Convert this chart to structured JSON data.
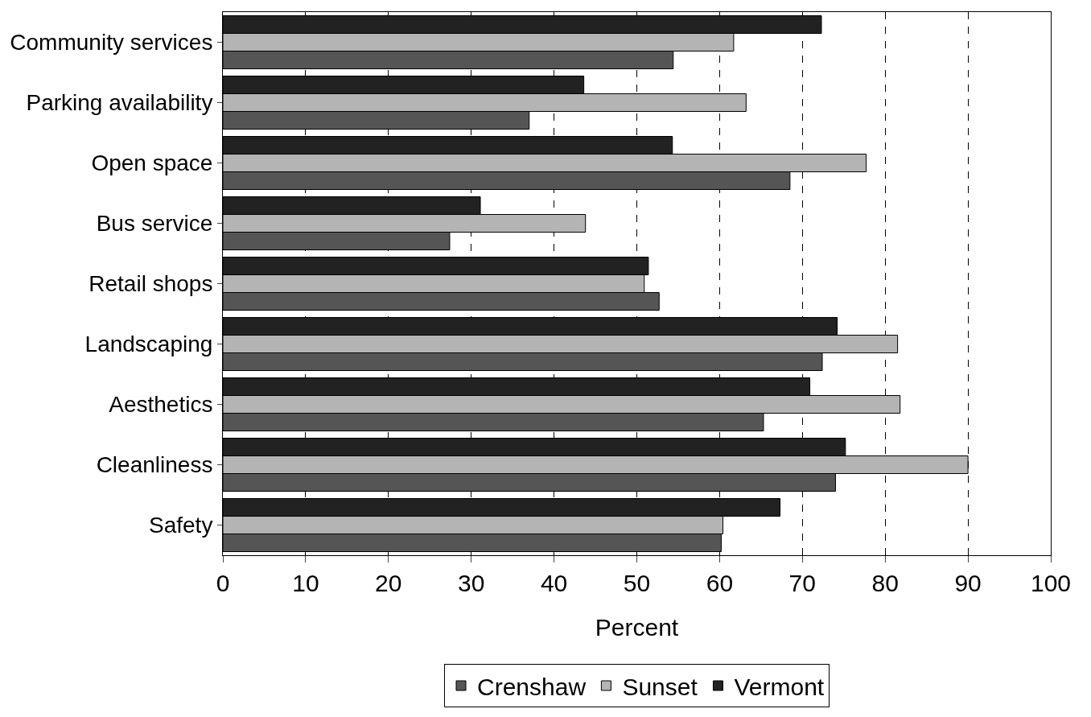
{
  "chart_data": {
    "type": "bar",
    "orientation": "horizontal",
    "xlabel": "Percent",
    "categories": [
      "Community services",
      "Parking availability",
      "Open space",
      "Bus service",
      "Retail shops",
      "Landscaping",
      "Aesthetics",
      "Cleanliness",
      "Safety"
    ],
    "series": [
      {
        "name": "Crenshaw",
        "color": "#555555",
        "values": [
          54.4,
          37.0,
          68.5,
          27.4,
          52.7,
          72.4,
          65.3,
          74.0,
          60.2
        ]
      },
      {
        "name": "Sunset",
        "color": "#b4b4b4",
        "values": [
          61.7,
          63.2,
          77.7,
          43.8,
          50.9,
          81.5,
          81.8,
          90.0,
          60.4
        ]
      },
      {
        "name": "Vermont",
        "color": "#222222",
        "values": [
          72.3,
          43.6,
          54.3,
          31.1,
          51.4,
          74.2,
          70.9,
          75.2,
          67.3
        ]
      }
    ],
    "xlim": [
      0,
      100
    ],
    "xticks": [
      0,
      10,
      20,
      30,
      40,
      50,
      60,
      70,
      80,
      90,
      100
    ],
    "grid": "x",
    "legend": "bottom"
  }
}
